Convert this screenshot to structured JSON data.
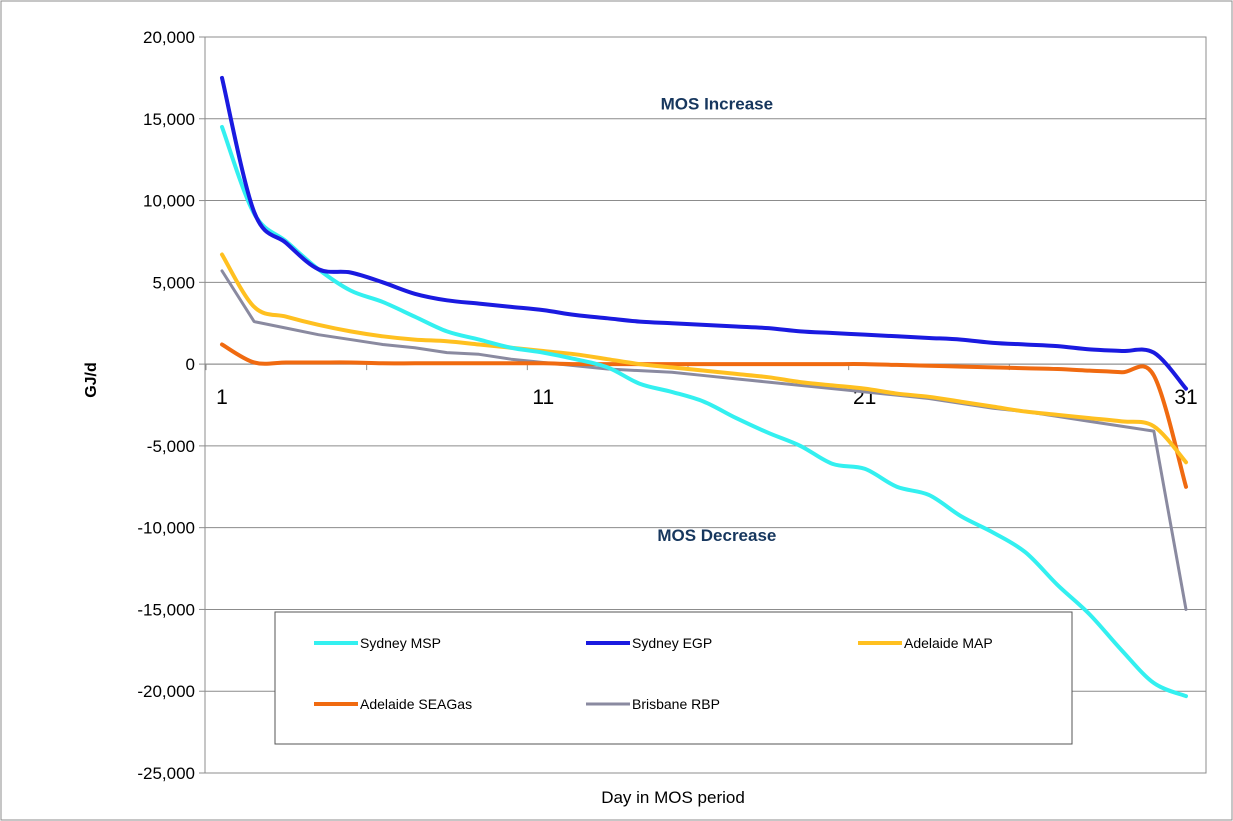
{
  "chart_data": {
    "type": "line",
    "title": "",
    "xlabel": "Day in MOS period",
    "ylabel": "GJ/d",
    "xlim": [
      1,
      31
    ],
    "ylim": [
      -25000,
      20000
    ],
    "x_ticks": [
      "1",
      "11",
      "21",
      "31"
    ],
    "y_ticks": [
      "20,000",
      "15,000",
      "10,000",
      "5,000",
      "0",
      "-5,000",
      "-10,000",
      "-15,000",
      "-20,000",
      "-25,000"
    ],
    "y_tick_values": [
      20000,
      15000,
      10000,
      5000,
      0,
      -5000,
      -10000,
      -15000,
      -20000,
      -25000
    ],
    "grid": "horizontal",
    "legend_position": "bottom-inside",
    "annotations": [
      {
        "text": "MOS Increase",
        "x": 15,
        "y": 16000
      },
      {
        "text": "MOS Decrease",
        "x": 15,
        "y": -10400
      }
    ],
    "x": [
      1,
      2,
      3,
      4,
      5,
      6,
      7,
      8,
      9,
      10,
      11,
      12,
      13,
      14,
      15,
      16,
      17,
      18,
      19,
      20,
      21,
      22,
      23,
      24,
      25,
      26,
      27,
      28,
      29,
      30,
      31
    ],
    "series": [
      {
        "name": "Sydney MSP",
        "color": "#33f0f0",
        "values": [
          14500,
          9200,
          7500,
          5800,
          4500,
          3800,
          2900,
          2000,
          1500,
          1000,
          700,
          300,
          -200,
          -1200,
          -1700,
          -2300,
          -3300,
          -4200,
          -5000,
          -6100,
          -6400,
          -7500,
          -8000,
          -9300,
          -10300,
          -11500,
          -13500,
          -15300,
          -17500,
          -19500,
          -20300
        ]
      },
      {
        "name": "Sydney EGP",
        "color": "#1a1ae0",
        "values": [
          17500,
          9300,
          7400,
          5800,
          5600,
          5000,
          4300,
          3900,
          3700,
          3500,
          3300,
          3000,
          2800,
          2600,
          2500,
          2400,
          2300,
          2200,
          2000,
          1900,
          1800,
          1700,
          1600,
          1500,
          1300,
          1200,
          1100,
          900,
          800,
          700,
          -1500
        ]
      },
      {
        "name": "Adelaide MAP",
        "color": "#ffc020",
        "values": [
          6700,
          3500,
          2900,
          2400,
          2000,
          1700,
          1500,
          1400,
          1200,
          1000,
          800,
          600,
          300,
          0,
          -200,
          -400,
          -600,
          -800,
          -1100,
          -1300,
          -1500,
          -1800,
          -2000,
          -2300,
          -2600,
          -2900,
          -3100,
          -3300,
          -3500,
          -3800,
          -6000
        ]
      },
      {
        "name": "Adelaide SEAGas",
        "color": "#f06a10",
        "values": [
          1200,
          100,
          100,
          100,
          100,
          50,
          50,
          50,
          50,
          50,
          50,
          0,
          0,
          0,
          0,
          0,
          0,
          0,
          0,
          0,
          0,
          -50,
          -100,
          -150,
          -200,
          -250,
          -300,
          -400,
          -500,
          -700,
          -7500
        ]
      },
      {
        "name": "Brisbane RBP",
        "color": "#8a8aa0",
        "values": [
          5700,
          2600,
          2200,
          1800,
          1500,
          1200,
          1000,
          700,
          600,
          300,
          100,
          -100,
          -300,
          -400,
          -500,
          -700,
          -900,
          -1100,
          -1300,
          -1500,
          -1700,
          -1900,
          -2100,
          -2400,
          -2700,
          -2900,
          -3200,
          -3500,
          -3800,
          -4100,
          -15000
        ]
      }
    ]
  }
}
